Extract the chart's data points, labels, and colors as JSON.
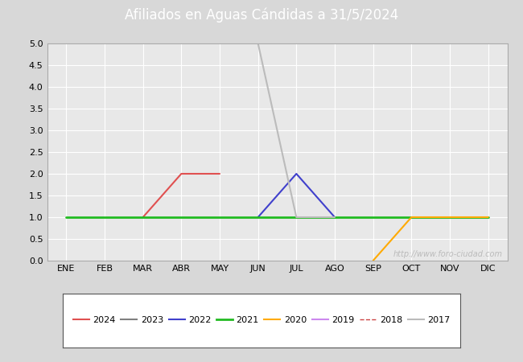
{
  "title": "Afiliados en Aguas Cándidas a 31/5/2024",
  "title_bg_color": "#4e7dbf",
  "title_text_color": "#ffffff",
  "ylim": [
    0.0,
    5.0
  ],
  "yticks": [
    0.0,
    0.5,
    1.0,
    1.5,
    2.0,
    2.5,
    3.0,
    3.5,
    4.0,
    4.5,
    5.0
  ],
  "months": [
    "ENE",
    "FEB",
    "MAR",
    "ABR",
    "MAY",
    "JUN",
    "JUL",
    "AGO",
    "SEP",
    "OCT",
    "NOV",
    "DIC"
  ],
  "month_indices": [
    1,
    2,
    3,
    4,
    5,
    6,
    7,
    8,
    9,
    10,
    11,
    12
  ],
  "watermark": "http://www.foro-ciudad.com",
  "series": [
    {
      "label": "2024",
      "color": "#e05050",
      "linewidth": 1.5,
      "linestyle": "-",
      "data": {
        "3": 1,
        "4": 2,
        "5": 2
      }
    },
    {
      "label": "2023",
      "color": "#808080",
      "linewidth": 1.5,
      "linestyle": "-",
      "data": {}
    },
    {
      "label": "2022",
      "color": "#4040cc",
      "linewidth": 1.5,
      "linestyle": "-",
      "data": {
        "6": 1,
        "7": 2,
        "8": 1
      }
    },
    {
      "label": "2021",
      "color": "#22bb22",
      "linewidth": 2.0,
      "linestyle": "-",
      "data": {
        "1": 1,
        "2": 1,
        "3": 1,
        "4": 1,
        "5": 1,
        "6": 1,
        "7": 1,
        "8": 1,
        "9": 1,
        "10": 1,
        "11": 1,
        "12": 1
      }
    },
    {
      "label": "2020",
      "color": "#ffaa00",
      "linewidth": 1.5,
      "linestyle": "-",
      "data": {
        "9": 0,
        "10": 1,
        "11": 1,
        "12": 1
      }
    },
    {
      "label": "2019",
      "color": "#cc88ee",
      "linewidth": 1.5,
      "linestyle": "-",
      "data": {}
    },
    {
      "label": "2018",
      "color": "#cc4444",
      "linewidth": 1.0,
      "linestyle": "--",
      "data": {}
    },
    {
      "label": "2017",
      "color": "#bbbbbb",
      "linewidth": 1.5,
      "linestyle": "-",
      "data": {
        "6": 5,
        "7": 1,
        "8": 1
      }
    }
  ],
  "bg_color": "#d8d8d8",
  "plot_bg_color": "#e8e8e8",
  "grid_color": "#ffffff",
  "frame_color": "#aaaaaa",
  "watermark_color": "#bbbbbb",
  "watermark_fontsize": 7,
  "tick_fontsize": 8,
  "legend_fontsize": 8
}
